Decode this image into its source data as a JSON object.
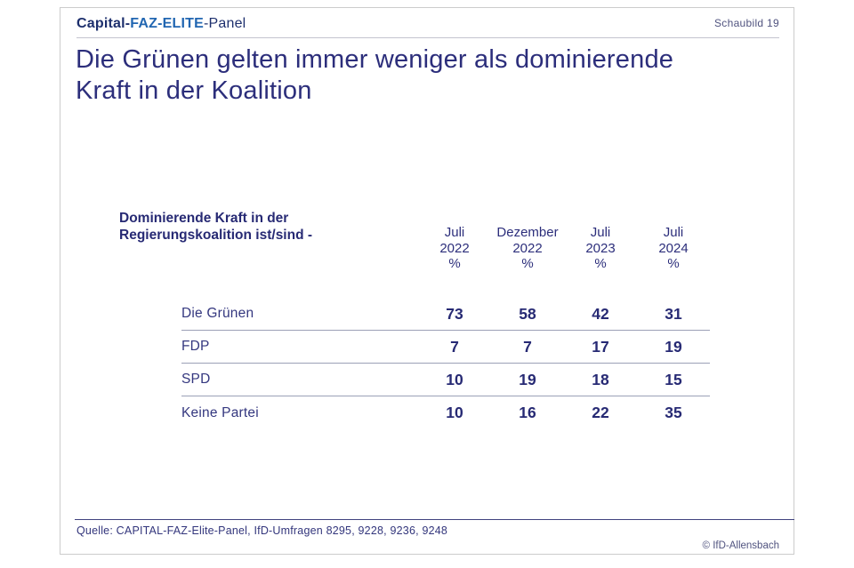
{
  "brand": {
    "capital": "Capital-",
    "faz_elite": "FAZ-ELITE",
    "panel": "-Panel"
  },
  "header": {
    "slide_label": "Schaubild 19"
  },
  "title": {
    "line1": "Die Grünen gelten immer weniger als dominierende",
    "line2": "Kraft in der Koalition"
  },
  "question": {
    "line1": "Dominierende Kraft in der",
    "line2": "Regierungskoalition ist/sind -"
  },
  "chart_data": {
    "type": "table",
    "title": "Die Grünen gelten immer weniger als dominierende Kraft in der Koalition",
    "question": "Dominierende Kraft in der Regierungskoalition ist/sind -",
    "unit": "%",
    "columns": [
      {
        "period": "Juli",
        "year": "2022",
        "unit": "%"
      },
      {
        "period": "Dezember",
        "year": "2022",
        "unit": "%"
      },
      {
        "period": "Juli",
        "year": "2023",
        "unit": "%"
      },
      {
        "period": "Juli",
        "year": "2024",
        "unit": "%"
      }
    ],
    "rows": [
      {
        "label": "Die Grünen",
        "values": [
          73,
          58,
          42,
          31
        ]
      },
      {
        "label": "FDP",
        "values": [
          7,
          7,
          17,
          19
        ]
      },
      {
        "label": "SPD",
        "values": [
          10,
          19,
          18,
          15
        ]
      },
      {
        "label": "Keine Partei",
        "values": [
          10,
          16,
          22,
          35
        ]
      }
    ]
  },
  "footer": {
    "source": "Quelle: CAPITAL-FAZ-Elite-Panel, IfD-Umfragen 8295, 9228, 9236, 9248",
    "copyright": "© IfD-Allensbach"
  },
  "colors": {
    "navy_text": "#2c2e7b",
    "bold_navy": "#272a74",
    "logo_navy": "#1d2f6d",
    "logo_blue": "#2166b1",
    "row_divider": "#9ba0b6",
    "footer_rule": "#40437f",
    "card_border": "#cccccc"
  }
}
